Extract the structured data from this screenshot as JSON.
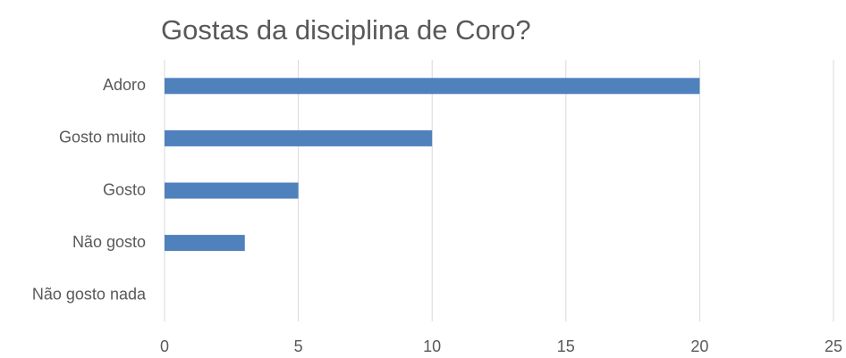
{
  "chart_data": {
    "type": "bar",
    "orientation": "horizontal",
    "title": "Gostas da disciplina de Coro?",
    "categories": [
      "Adoro",
      "Gosto muito",
      "Gosto",
      "Não gosto",
      "Não gosto nada"
    ],
    "values": [
      20,
      10,
      5,
      3,
      0
    ],
    "color": "#4f81bd",
    "xlim": [
      0,
      25
    ],
    "xticks": [
      0,
      5,
      10,
      15,
      20,
      25
    ],
    "grid": true
  }
}
